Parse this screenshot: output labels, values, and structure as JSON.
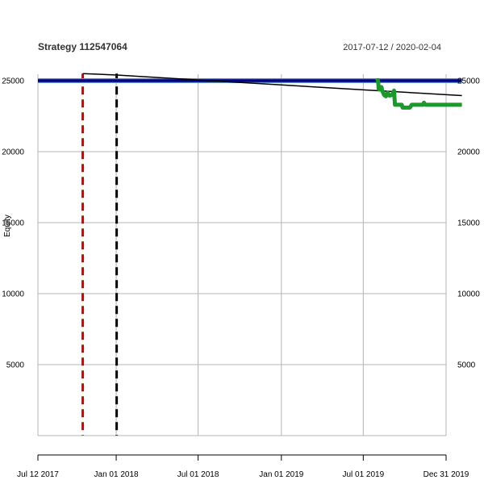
{
  "chart_data": {
    "type": "line",
    "title": "Strategy 112547064",
    "date_range": "2017-07-12 / 2020-02-04",
    "ylabel": "Equity",
    "xlabel": "",
    "x_range": [
      "2017-07-12",
      "2020-02-04"
    ],
    "ylim": [
      0,
      25500
    ],
    "y_ticks": [
      5000,
      10000,
      15000,
      20000,
      25000
    ],
    "y_tick_labels": [
      "5000",
      "10000",
      "15000",
      "20000",
      "25000"
    ],
    "x_ticks": [
      "2017-07-12",
      "2018-01-01",
      "2018-07-01",
      "2019-01-01",
      "2019-07-01",
      "2019-12-31"
    ],
    "x_tick_labels": [
      "Jul 12 2017",
      "Jan 01 2018",
      "Jul 01 2018",
      "Jan 01 2019",
      "Jul 01 2019",
      "Dec 31 2019"
    ],
    "grid": true,
    "vertical_markers": [
      {
        "date": "2017-10-19",
        "color": "#dd0000",
        "style": "dashed"
      },
      {
        "date": "2018-01-02",
        "color": "#000000",
        "style": "dashed"
      }
    ],
    "series": [
      {
        "color": "#000080",
        "style": "horizontal",
        "points": [
          [
            "2017-07-12",
            25000
          ],
          [
            "2020-02-04",
            25000
          ]
        ]
      },
      {
        "color": "#000000",
        "style": "thin",
        "points": [
          [
            "2017-10-19",
            25500
          ],
          [
            "2018-01-02",
            25400
          ],
          [
            "2018-07-01",
            25050
          ],
          [
            "2019-01-01",
            24700
          ],
          [
            "2019-07-01",
            24350
          ],
          [
            "2020-02-04",
            23950
          ]
        ]
      },
      {
        "color": "#1a9a2a",
        "style": "thick",
        "points": [
          [
            "2019-08-01",
            25150
          ],
          [
            "2019-08-03",
            24900
          ],
          [
            "2019-08-04",
            24400
          ],
          [
            "2019-08-09",
            24400
          ],
          [
            "2019-08-10",
            24550
          ],
          [
            "2019-08-12",
            24300
          ],
          [
            "2019-08-16",
            24000
          ],
          [
            "2019-08-20",
            23900
          ],
          [
            "2019-08-24",
            24150
          ],
          [
            "2019-08-28",
            23950
          ],
          [
            "2019-09-03",
            24000
          ],
          [
            "2019-09-07",
            24300
          ],
          [
            "2019-09-09",
            23300
          ],
          [
            "2019-09-24",
            23300
          ],
          [
            "2019-09-26",
            23100
          ],
          [
            "2019-10-12",
            23100
          ],
          [
            "2019-10-16",
            23300
          ],
          [
            "2019-11-10",
            23300
          ],
          [
            "2019-11-12",
            23450
          ],
          [
            "2019-11-15",
            23300
          ],
          [
            "2020-02-04",
            23300
          ]
        ]
      }
    ]
  }
}
